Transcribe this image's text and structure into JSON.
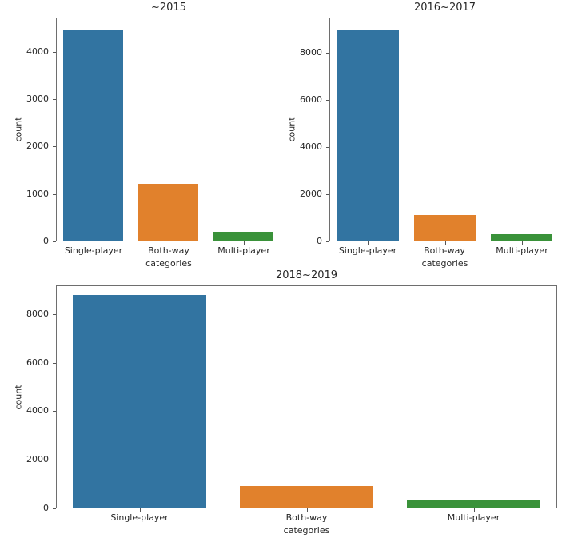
{
  "figure": {
    "background": "#ffffff",
    "text_color": "#262626"
  },
  "palette": {
    "single_player": "#3274a1",
    "both_way": "#e1812c",
    "multi_player": "#3a923a"
  },
  "chart_data": [
    {
      "type": "bar",
      "title": "~2015",
      "xlabel": "categories",
      "ylabel": "count",
      "categories": [
        "Single-player",
        "Both-way",
        "Multi-player"
      ],
      "values": [
        4450,
        1200,
        190
      ],
      "colors": [
        "#3274a1",
        "#e1812c",
        "#3a923a"
      ],
      "yticks": [
        0,
        1000,
        2000,
        3000,
        4000
      ],
      "ylim": [
        0,
        4720
      ],
      "grid": false,
      "legend": null
    },
    {
      "type": "bar",
      "title": "2016~2017",
      "xlabel": "categories",
      "ylabel": "count",
      "categories": [
        "Single-player",
        "Both-way",
        "Multi-player"
      ],
      "values": [
        8950,
        1100,
        280
      ],
      "colors": [
        "#3274a1",
        "#e1812c",
        "#3a923a"
      ],
      "yticks": [
        0,
        2000,
        4000,
        6000,
        8000
      ],
      "ylim": [
        0,
        9500
      ],
      "grid": false,
      "legend": null
    },
    {
      "type": "bar",
      "title": "2018~2019",
      "xlabel": "categories",
      "ylabel": "count",
      "categories": [
        "Single-player",
        "Both-way",
        "Multi-player"
      ],
      "values": [
        8750,
        880,
        340
      ],
      "colors": [
        "#3274a1",
        "#e1812c",
        "#3a923a"
      ],
      "yticks": [
        0,
        2000,
        4000,
        6000,
        8000
      ],
      "ylim": [
        0,
        9180
      ],
      "grid": false,
      "legend": null
    }
  ]
}
